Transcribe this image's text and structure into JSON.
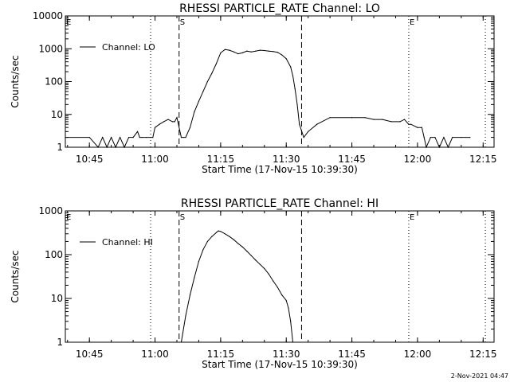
{
  "timestamp": "2-Nov-2021 04:47",
  "chart_data": [
    {
      "type": "line",
      "title": "RHESSI PARTICLE_RATE Channel: LO",
      "xlabel": "Start Time (17-Nov-15 10:39:30)",
      "ylabel": "Counts/sec",
      "yscale": "log",
      "ylim": [
        1,
        10000
      ],
      "xlim": [
        "10:39:30",
        "12:17:30"
      ],
      "x_ticks": [
        "10:45",
        "11:00",
        "11:15",
        "11:30",
        "11:45",
        "12:00",
        "12:15"
      ],
      "y_ticks": [
        "1",
        "10",
        "100",
        "1000",
        "10000"
      ],
      "legend": "top-left",
      "series": [
        {
          "name": "Channel: LO",
          "x": [
            "10:39:30",
            "10:45:00",
            "10:47:00",
            "10:48:00",
            "10:49:00",
            "10:50:00",
            "10:51:00",
            "10:52:00",
            "10:53:00",
            "10:54:00",
            "10:55:00",
            "10:56:00",
            "10:56:30",
            "10:57:00",
            "10:58:00",
            "10:59:00",
            "10:59:30",
            "11:00:00",
            "11:01:00",
            "11:02:00",
            "11:03:00",
            "11:04:00",
            "11:04:30",
            "11:05:00",
            "11:06:00",
            "11:06:30",
            "11:07:00",
            "11:08:00",
            "11:09:00",
            "11:10:00",
            "11:11:00",
            "11:12:00",
            "11:13:00",
            "11:14:00",
            "11:15:00",
            "11:16:00",
            "11:17:00",
            "11:18:00",
            "11:19:00",
            "11:20:00",
            "11:21:00",
            "11:22:00",
            "11:23:00",
            "11:24:00",
            "11:25:00",
            "11:26:00",
            "11:27:00",
            "11:28:00",
            "11:29:00",
            "11:30:00",
            "11:31:00",
            "11:31:30",
            "11:32:00",
            "11:32:30",
            "11:33:00",
            "11:34:00",
            "11:35:00",
            "11:37:00",
            "11:40:00",
            "11:45:00",
            "11:48:00",
            "11:50:00",
            "11:52:00",
            "11:54:00",
            "11:56:00",
            "11:57:00",
            "11:58:00",
            "11:58:30",
            "12:00:00",
            "12:01:00",
            "12:01:30",
            "12:02:00",
            "12:03:00",
            "12:04:00",
            "12:05:00",
            "12:06:00",
            "12:07:00",
            "12:08:00",
            "12:10:00",
            "12:12:00"
          ],
          "values": [
            2,
            2,
            1,
            2,
            1,
            2,
            1,
            2,
            1,
            2,
            2,
            3,
            2,
            2,
            2,
            2,
            2,
            4,
            5,
            6,
            7,
            6,
            6,
            8,
            2,
            2,
            2,
            4,
            12,
            25,
            50,
            100,
            180,
            350,
            750,
            950,
            900,
            800,
            700,
            750,
            850,
            800,
            850,
            900,
            880,
            850,
            820,
            780,
            650,
            500,
            280,
            150,
            60,
            20,
            5,
            2,
            3,
            5,
            8,
            8,
            8,
            7,
            7,
            6,
            6,
            7,
            5,
            5,
            4,
            4,
            2,
            1,
            2,
            2,
            1,
            2,
            1,
            2,
            2,
            2
          ]
        }
      ],
      "markers": [
        {
          "label": "E",
          "time": "10:39:30",
          "style": "dotted"
        },
        {
          "label": "",
          "time": "10:59:00",
          "style": "dotted"
        },
        {
          "label": "S",
          "time": "11:05:30",
          "style": "dashed"
        },
        {
          "label": "",
          "time": "11:33:30",
          "style": "dashed"
        },
        {
          "label": "E",
          "time": "11:58:00",
          "style": "dotted"
        },
        {
          "label": "",
          "time": "12:15:30",
          "style": "dotted"
        }
      ]
    },
    {
      "type": "line",
      "title": "RHESSI PARTICLE_RATE Channel: HI",
      "xlabel": "Start Time (17-Nov-15 10:39:30)",
      "ylabel": "Counts/sec",
      "yscale": "log",
      "ylim": [
        1,
        1000
      ],
      "xlim": [
        "10:39:30",
        "12:17:30"
      ],
      "x_ticks": [
        "10:45",
        "11:00",
        "11:15",
        "11:30",
        "11:45",
        "12:00",
        "12:15"
      ],
      "y_ticks": [
        "1",
        "10",
        "100",
        "1000"
      ],
      "legend": "top-left",
      "series": [
        {
          "name": "Channel: HI",
          "x": [
            "11:06:00",
            "11:07:00",
            "11:08:00",
            "11:09:00",
            "11:10:00",
            "11:11:00",
            "11:12:00",
            "11:13:00",
            "11:14:00",
            "11:14:30",
            "11:15:00",
            "11:16:00",
            "11:17:00",
            "11:18:00",
            "11:19:00",
            "11:20:00",
            "11:21:00",
            "11:22:00",
            "11:23:00",
            "11:24:00",
            "11:25:00",
            "11:26:00",
            "11:27:00",
            "11:28:00",
            "11:29:00",
            "11:30:00",
            "11:30:30",
            "11:31:00",
            "11:31:30"
          ],
          "values": [
            1,
            4,
            12,
            30,
            70,
            130,
            200,
            260,
            320,
            350,
            340,
            300,
            260,
            220,
            180,
            150,
            120,
            95,
            75,
            60,
            48,
            36,
            25,
            18,
            12,
            9,
            6,
            3,
            1
          ]
        }
      ],
      "markers": [
        {
          "label": "E",
          "time": "10:39:30",
          "style": "dotted"
        },
        {
          "label": "",
          "time": "10:59:00",
          "style": "dotted"
        },
        {
          "label": "S",
          "time": "11:05:30",
          "style": "dashed"
        },
        {
          "label": "",
          "time": "11:33:30",
          "style": "dashed"
        },
        {
          "label": "E",
          "time": "11:58:00",
          "style": "dotted"
        },
        {
          "label": "",
          "time": "12:15:30",
          "style": "dotted"
        }
      ]
    }
  ]
}
